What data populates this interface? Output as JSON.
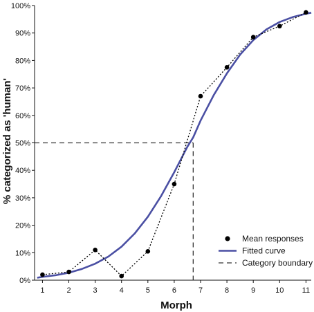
{
  "chart_data": {
    "type": "line",
    "xlabel": "Morph",
    "ylabel": "% categorized as 'human'",
    "xlim": [
      0.7,
      11.2
    ],
    "ylim": [
      0,
      100
    ],
    "x_ticks": [
      1,
      2,
      3,
      4,
      5,
      6,
      7,
      8,
      9,
      10,
      11
    ],
    "x_tick_labels": [
      "1",
      "2",
      "3",
      "4",
      "5",
      "6",
      "7",
      "8",
      "9",
      "10",
      "11"
    ],
    "y_ticks": [
      0,
      10,
      20,
      30,
      40,
      50,
      60,
      70,
      80,
      90,
      100
    ],
    "y_tick_labels": [
      "0%",
      "10%",
      "20%",
      "30%",
      "40%",
      "50%",
      "60%",
      "70%",
      "80%",
      "90%",
      "100%"
    ],
    "grid": false,
    "legend_position": "bottom-right",
    "colors": {
      "mean": "#000000",
      "fitted": "#4a4fa3",
      "boundary": "#333333"
    },
    "series": [
      {
        "name": "Mean responses",
        "style": "dotted line with markers",
        "x": [
          1,
          2,
          3,
          4,
          5,
          6,
          7,
          8,
          9,
          10,
          11
        ],
        "values": [
          2,
          3,
          11,
          1.5,
          10.5,
          35,
          67,
          77.5,
          88.5,
          92.5,
          97.5
        ]
      },
      {
        "name": "Fitted curve",
        "style": "solid line",
        "x": [
          0.8,
          1,
          1.5,
          2,
          2.5,
          3,
          3.5,
          4,
          4.5,
          5,
          5.5,
          6,
          6.5,
          6.72,
          7,
          7.5,
          8,
          8.5,
          9,
          9.5,
          10,
          10.5,
          11,
          11.2
        ],
        "values": [
          0.9,
          1.2,
          1.8,
          2.7,
          4.1,
          6.0,
          8.6,
          12.2,
          17.0,
          23.1,
          30.6,
          39.3,
          48.6,
          52.0,
          58.1,
          67.4,
          75.3,
          82.1,
          87.4,
          91.3,
          94.0,
          95.8,
          97.0,
          97.4
        ]
      },
      {
        "name": "Category boundary",
        "style": "dashed line",
        "boundary_x": 6.72,
        "boundary_y": 50
      }
    ]
  }
}
